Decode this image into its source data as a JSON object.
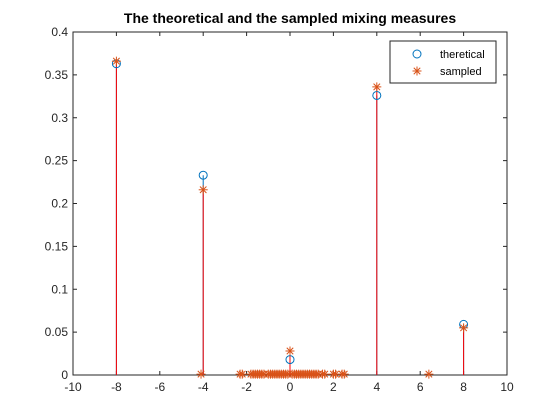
{
  "chart_data": {
    "type": "stem",
    "title": "The theoretical and the sampled mixing measures",
    "xlabel": "",
    "ylabel": "",
    "xlim": [
      -10,
      10
    ],
    "ylim": [
      0,
      0.4
    ],
    "xticks": [
      "-10",
      "-8",
      "-6",
      "-4",
      "-2",
      "0",
      "2",
      "4",
      "6",
      "8",
      "10"
    ],
    "yticks": [
      "0",
      "0.05",
      "0.1",
      "0.15",
      "0.2",
      "0.25",
      "0.3",
      "0.35",
      "0.4"
    ],
    "grid": false,
    "legend_position": "top-right",
    "series": [
      {
        "name": "theretical",
        "marker": "circle",
        "color": "#0072BD",
        "x": [
          -8,
          -4,
          0,
          4,
          8
        ],
        "y": [
          0.363,
          0.233,
          0.018,
          0.326,
          0.059
        ]
      },
      {
        "name": "sampled",
        "marker": "asterisk",
        "color": "#D95319",
        "stem_color": "#FF0000",
        "x": [
          -8,
          -4.1,
          -4,
          -2.3,
          -2.2,
          -1.8,
          -1.7,
          -1.6,
          -1.5,
          -1.4,
          -1.3,
          -1.2,
          -1.0,
          -0.9,
          -0.8,
          -0.7,
          -0.6,
          -0.5,
          -0.4,
          -0.3,
          -0.2,
          -0.1,
          0,
          0.1,
          0.2,
          0.3,
          0.4,
          0.5,
          0.6,
          0.7,
          0.8,
          0.9,
          1.0,
          1.1,
          1.2,
          1.3,
          1.5,
          1.6,
          2.0,
          2.1,
          2.4,
          2.5,
          4,
          6.4,
          8
        ],
        "y": [
          0.366,
          0.001,
          0.216,
          0.001,
          0.001,
          0.001,
          0.001,
          0.001,
          0.001,
          0.001,
          0.001,
          0.001,
          0.001,
          0.001,
          0.001,
          0.001,
          0.001,
          0.001,
          0.001,
          0.001,
          0.001,
          0.001,
          0.028,
          0.001,
          0.001,
          0.001,
          0.001,
          0.001,
          0.001,
          0.001,
          0.001,
          0.001,
          0.001,
          0.001,
          0.001,
          0.001,
          0.001,
          0.001,
          0.001,
          0.001,
          0.001,
          0.001,
          0.336,
          0.001,
          0.055
        ]
      }
    ]
  }
}
